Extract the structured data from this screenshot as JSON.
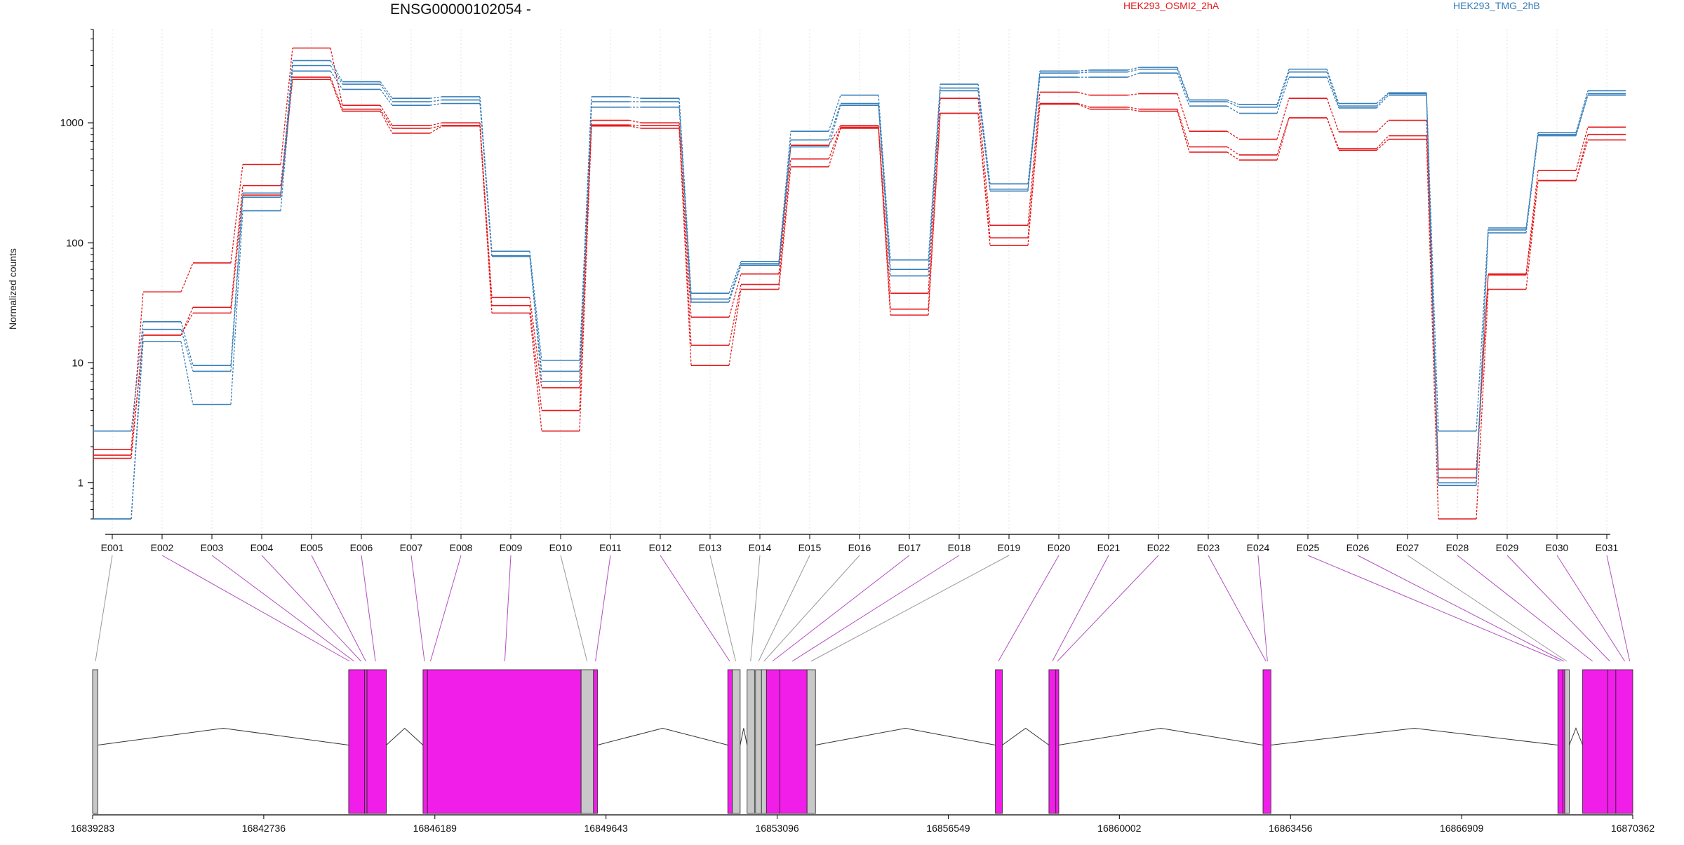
{
  "chart_data": {
    "type": "line",
    "title": "ENSG00000102054 -",
    "ylabel": "Normalized counts",
    "yscale": "log",
    "ylim": [
      0.5,
      6000
    ],
    "yticks": [
      {
        "value": 1,
        "label": "1"
      },
      {
        "value": 10,
        "label": "10"
      },
      {
        "value": 100,
        "label": "100"
      },
      {
        "value": 1000,
        "label": "1000"
      }
    ],
    "exons": [
      "E001",
      "E002",
      "E003",
      "E004",
      "E005",
      "E006",
      "E007",
      "E008",
      "E009",
      "E010",
      "E011",
      "E012",
      "E013",
      "E014",
      "E015",
      "E016",
      "E017",
      "E018",
      "E019",
      "E020",
      "E021",
      "E022",
      "E023",
      "E024",
      "E025",
      "E026",
      "E027",
      "E028",
      "E029",
      "E030",
      "E031"
    ],
    "series": [
      {
        "group": "HEK293_OSMI2_2hA",
        "values": [
          1.9,
          39,
          68,
          450,
          4200,
          1400,
          950,
          1000,
          35,
          6.2,
          1050,
          1000,
          24,
          55,
          650,
          950,
          38,
          1600,
          140,
          1800,
          1700,
          1750,
          850,
          730,
          1600,
          840,
          1050,
          1.3,
          55,
          400,
          920
        ]
      },
      {
        "group": "HEK293_OSMI2_2hA",
        "values": [
          1.7,
          17,
          29,
          300,
          2400,
          1300,
          900,
          950,
          30,
          4.0,
          960,
          950,
          14,
          45,
          500,
          920,
          28,
          1200,
          110,
          1450,
          1350,
          1300,
          630,
          540,
          1100,
          610,
          780,
          1.1,
          54,
          330,
          800
        ]
      },
      {
        "group": "HEK293_OSMI2_2hA",
        "values": [
          1.6,
          17,
          26,
          250,
          2300,
          1250,
          820,
          940,
          26,
          2.7,
          940,
          900,
          9.5,
          41,
          430,
          900,
          25,
          1200,
          95,
          1430,
          1300,
          1250,
          570,
          490,
          1100,
          590,
          730,
          0.5,
          41,
          330,
          720
        ]
      },
      {
        "group": "HEK293_TMG_2hB",
        "values": [
          2.7,
          22,
          9.5,
          260,
          3300,
          2200,
          1600,
          1650,
          85,
          10.5,
          1650,
          1600,
          38,
          70,
          850,
          1700,
          72,
          2100,
          310,
          2700,
          2750,
          2900,
          1550,
          1420,
          2800,
          1450,
          1780,
          2.7,
          133,
          830,
          1850
        ]
      },
      {
        "group": "HEK293_TMG_2hB",
        "values": [
          0.5,
          19,
          8.5,
          240,
          3000,
          2100,
          1500,
          1550,
          77,
          8.5,
          1500,
          1500,
          34,
          67,
          720,
          1450,
          60,
          1950,
          280,
          2600,
          2650,
          2800,
          1500,
          1350,
          2650,
          1380,
          1750,
          1.0,
          128,
          800,
          1750
        ]
      },
      {
        "group": "HEK293_TMG_2hB",
        "values": [
          0.5,
          15,
          4.5,
          185,
          2700,
          1900,
          1400,
          1450,
          78,
          7.0,
          1350,
          1350,
          32,
          65,
          630,
          1400,
          53,
          1850,
          270,
          2400,
          2400,
          2600,
          1380,
          1200,
          2400,
          1330,
          1700,
          0.95,
          121,
          780,
          1700
        ]
      }
    ],
    "legend": [
      {
        "name": "HEK293_OSMI2_2hA",
        "color": "#e41a1c"
      },
      {
        "name": "HEK293_TMG_2hB",
        "color": "#377eb8"
      }
    ],
    "genomic_axis": {
      "range": [
        16839283,
        16870362
      ],
      "tick_labels": [
        "16839283",
        "16842736",
        "16846189",
        "16849643",
        "16853096",
        "16856549",
        "16860002",
        "16863456",
        "16866909",
        "16870362"
      ]
    },
    "exon_blocks": [
      {
        "start": 16839283,
        "end": 16839390,
        "color": "#c8c8c8"
      },
      {
        "start": 16844450,
        "end": 16844770,
        "color": "#f01ee8"
      },
      {
        "start": 16844770,
        "end": 16844820,
        "color": "#f01ee8"
      },
      {
        "start": 16844820,
        "end": 16845210,
        "color": "#f01ee8"
      },
      {
        "start": 16845950,
        "end": 16846040,
        "color": "#f01ee8"
      },
      {
        "start": 16846040,
        "end": 16849140,
        "color": "#f01ee8"
      },
      {
        "start": 16849140,
        "end": 16849390,
        "color": "#c8c8c8"
      },
      {
        "start": 16849390,
        "end": 16849470,
        "color": "#f01ee8"
      },
      {
        "start": 16852100,
        "end": 16852190,
        "color": "#f01ee8"
      },
      {
        "start": 16852190,
        "end": 16852350,
        "color": "#c8c8c8"
      },
      {
        "start": 16852490,
        "end": 16852640,
        "color": "#c8c8c8"
      },
      {
        "start": 16852660,
        "end": 16852780,
        "color": "#c8c8c8"
      },
      {
        "start": 16852780,
        "end": 16852880,
        "color": "#c8c8c8"
      },
      {
        "start": 16852880,
        "end": 16853150,
        "color": "#f01ee8"
      },
      {
        "start": 16853150,
        "end": 16853700,
        "color": "#f01ee8"
      },
      {
        "start": 16853700,
        "end": 16853870,
        "color": "#c8c8c8"
      },
      {
        "start": 16857500,
        "end": 16857640,
        "color": "#f01ee8"
      },
      {
        "start": 16858580,
        "end": 16858720,
        "color": "#f01ee8"
      },
      {
        "start": 16858720,
        "end": 16858780,
        "color": "#f01ee8"
      },
      {
        "start": 16862900,
        "end": 16863060,
        "color": "#f01ee8"
      },
      {
        "start": 16868850,
        "end": 16868950,
        "color": "#f01ee8"
      },
      {
        "start": 16868950,
        "end": 16868990,
        "color": "#f01ee8"
      },
      {
        "start": 16868990,
        "end": 16869080,
        "color": "#c8c8c8"
      },
      {
        "start": 16869350,
        "end": 16869860,
        "color": "#f01ee8"
      },
      {
        "start": 16869860,
        "end": 16870020,
        "color": "#f01ee8"
      },
      {
        "start": 16870020,
        "end": 16870362,
        "color": "#f01ee8"
      }
    ],
    "exon_map": [
      {
        "exon": "E001",
        "pos": 16839340,
        "color": "#999999"
      },
      {
        "exon": "E002",
        "pos": 16844470,
        "color": "#b34fc1"
      },
      {
        "exon": "E003",
        "pos": 16844560,
        "color": "#b34fc1"
      },
      {
        "exon": "E004",
        "pos": 16844700,
        "color": "#b34fc1"
      },
      {
        "exon": "E005",
        "pos": 16844795,
        "color": "#b34fc1"
      },
      {
        "exon": "E006",
        "pos": 16844990,
        "color": "#b34fc1"
      },
      {
        "exon": "E007",
        "pos": 16845980,
        "color": "#b34fc1"
      },
      {
        "exon": "E008",
        "pos": 16846100,
        "color": "#b34fc1"
      },
      {
        "exon": "E009",
        "pos": 16847600,
        "color": "#b34fc1"
      },
      {
        "exon": "E010",
        "pos": 16849260,
        "color": "#999999"
      },
      {
        "exon": "E011",
        "pos": 16849430,
        "color": "#b34fc1"
      },
      {
        "exon": "E012",
        "pos": 16852140,
        "color": "#b34fc1"
      },
      {
        "exon": "E013",
        "pos": 16852260,
        "color": "#999999"
      },
      {
        "exon": "E014",
        "pos": 16852560,
        "color": "#999999"
      },
      {
        "exon": "E015",
        "pos": 16852720,
        "color": "#999999"
      },
      {
        "exon": "E016",
        "pos": 16852830,
        "color": "#999999"
      },
      {
        "exon": "E017",
        "pos": 16853000,
        "color": "#b34fc1"
      },
      {
        "exon": "E018",
        "pos": 16853400,
        "color": "#b34fc1"
      },
      {
        "exon": "E019",
        "pos": 16853780,
        "color": "#999999"
      },
      {
        "exon": "E020",
        "pos": 16857560,
        "color": "#b34fc1"
      },
      {
        "exon": "E021",
        "pos": 16858650,
        "color": "#b34fc1"
      },
      {
        "exon": "E022",
        "pos": 16858750,
        "color": "#b34fc1"
      },
      {
        "exon": "E023",
        "pos": 16862960,
        "color": "#b34fc1"
      },
      {
        "exon": "E024",
        "pos": 16862990,
        "color": "#b34fc1"
      },
      {
        "exon": "E025",
        "pos": 16868900,
        "color": "#b34fc1"
      },
      {
        "exon": "E026",
        "pos": 16868970,
        "color": "#b34fc1"
      },
      {
        "exon": "E027",
        "pos": 16869030,
        "color": "#999999"
      },
      {
        "exon": "E028",
        "pos": 16869550,
        "color": "#b34fc1"
      },
      {
        "exon": "E029",
        "pos": 16869900,
        "color": "#b34fc1"
      },
      {
        "exon": "E030",
        "pos": 16870200,
        "color": "#b34fc1"
      },
      {
        "exon": "E031",
        "pos": 16870300,
        "color": "#b34fc1"
      }
    ]
  }
}
